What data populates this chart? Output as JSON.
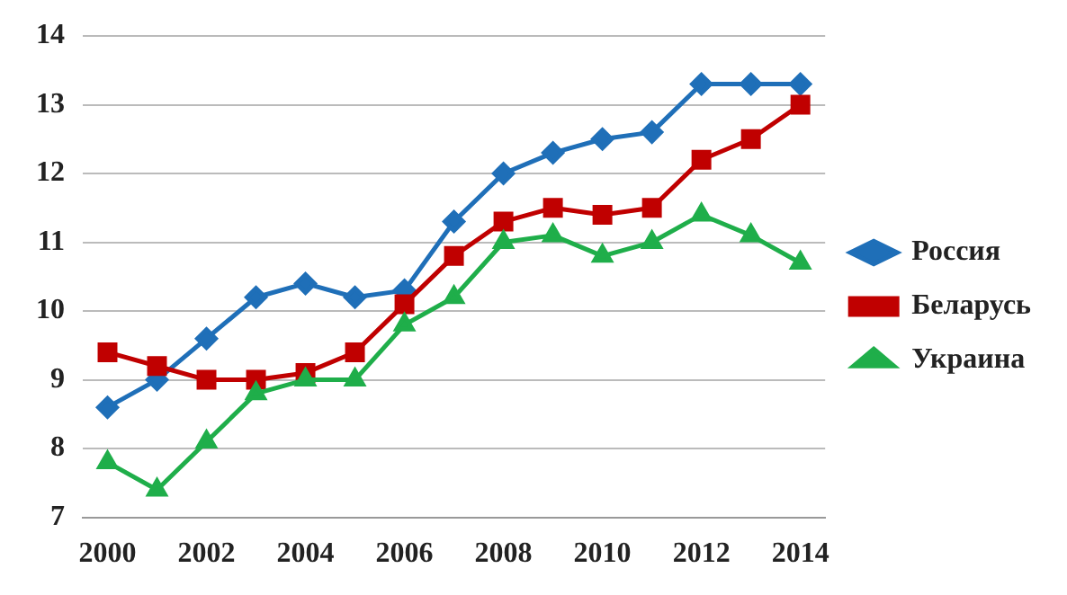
{
  "chart_data": {
    "type": "line",
    "categories": [
      "2000",
      null,
      "2002",
      null,
      "2004",
      null,
      "2006",
      null,
      "2008",
      null,
      "2010",
      null,
      "2012",
      null,
      "2014"
    ],
    "series": [
      {
        "name": "Россия",
        "color": "#1f6fb8",
        "marker": "diamond",
        "values": [
          8.6,
          9.0,
          9.6,
          10.2,
          10.4,
          10.2,
          10.3,
          11.3,
          12.0,
          12.3,
          12.5,
          12.6,
          13.3,
          13.3,
          13.3
        ]
      },
      {
        "name": "Беларусь",
        "color": "#c00000",
        "marker": "square",
        "values": [
          9.4,
          9.2,
          9.0,
          9.0,
          9.1,
          9.4,
          10.1,
          10.8,
          11.3,
          11.5,
          11.4,
          11.5,
          12.2,
          12.5,
          13.0
        ]
      },
      {
        "name": "Украина",
        "color": "#1fae4a",
        "marker": "triangle",
        "values": [
          7.8,
          7.4,
          8.1,
          8.8,
          9.0,
          9.0,
          9.8,
          10.2,
          11.0,
          11.1,
          10.8,
          11.0,
          11.4,
          11.1,
          10.7
        ]
      }
    ],
    "ylim": [
      7,
      14
    ],
    "yticks": [
      7,
      8,
      9,
      10,
      11,
      12,
      13,
      14
    ],
    "grid": "y",
    "legend": "right"
  }
}
